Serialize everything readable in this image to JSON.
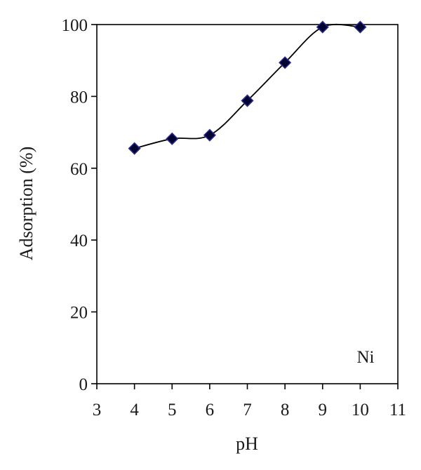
{
  "chart_data": {
    "type": "scatter",
    "title": "",
    "xlabel": "pH",
    "ylabel": "Adsorption (%)",
    "xlim": [
      3,
      11
    ],
    "ylim": [
      0,
      100
    ],
    "xticks": [
      3,
      4,
      5,
      6,
      7,
      8,
      9,
      10,
      11
    ],
    "yticks": [
      0,
      20,
      40,
      60,
      80,
      100
    ],
    "grid": false,
    "annotation": "Ni",
    "series": [
      {
        "marker": "diamond",
        "marker_color": "#000033",
        "marker_edge_color": "#2b2b8c",
        "line": "smooth",
        "line_color": "#000000",
        "x": [
          4,
          5,
          6,
          7,
          8,
          9,
          10
        ],
        "y": [
          65.5,
          68.2,
          69.2,
          78.8,
          89.4,
          99.3,
          99.3
        ]
      }
    ]
  }
}
